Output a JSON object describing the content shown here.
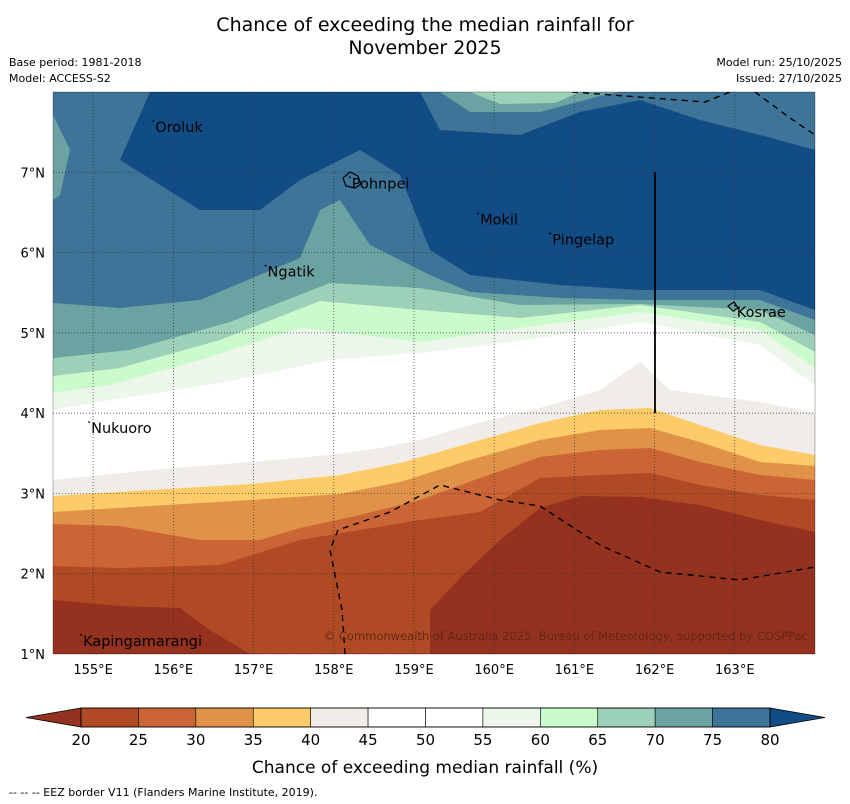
{
  "title": {
    "line1": "Chance of exceeding the median rainfall for",
    "line2": "November 2025"
  },
  "meta_left": {
    "base_period": "Base period: 1981-2018",
    "model": "Model: ACCESS-S2"
  },
  "meta_right": {
    "model_run": "Model run: 25/10/2025",
    "issued": "Issued: 27/10/2025"
  },
  "map": {
    "lon_range": [
      154.5,
      164.0
    ],
    "lat_range": [
      1.0,
      8.0
    ],
    "lon_ticks": [
      155,
      156,
      157,
      158,
      159,
      160,
      161,
      162,
      163
    ],
    "lon_tick_labels": [
      "155°E",
      "156°E",
      "157°E",
      "158°E",
      "159°E",
      "160°E",
      "161°E",
      "162°E",
      "163°E"
    ],
    "lat_ticks": [
      1,
      2,
      3,
      4,
      5,
      6,
      7
    ],
    "lat_tick_labels": [
      "1°N",
      "2°N",
      "3°N",
      "4°N",
      "5°N",
      "6°N",
      "7°N"
    ],
    "places": [
      {
        "name": "Oroluk",
        "lon": 155.75,
        "lat": 7.6
      },
      {
        "name": "Pohnpei",
        "lon": 158.2,
        "lat": 6.9
      },
      {
        "name": "Mokil",
        "lon": 159.8,
        "lat": 6.45
      },
      {
        "name": "Pingelap",
        "lon": 160.7,
        "lat": 6.2
      },
      {
        "name": "Ngatik",
        "lon": 157.15,
        "lat": 5.8
      },
      {
        "name": "Kosrae",
        "lon": 163.0,
        "lat": 5.3
      },
      {
        "name": "Nukuoro",
        "lon": 154.95,
        "lat": 3.85
      },
      {
        "name": "Kapingamarangi",
        "lon": 154.85,
        "lat": 1.2
      }
    ],
    "copyright": "© Commonwealth of Australia 2025, Bureau of Meteorology, supported by COSPPac"
  },
  "colorbar": {
    "levels": [
      20,
      25,
      30,
      35,
      40,
      45,
      50,
      55,
      60,
      65,
      70,
      75,
      80
    ],
    "colors": [
      "#b04a25",
      "#cc6535",
      "#e09348",
      "#fecb69",
      "#f0ede8",
      "#ffffff",
      "#ffffff",
      "#ecf6ea",
      "#cbfbcc",
      "#9dd0b8",
      "#6ba3a2",
      "#3e7497"
    ],
    "under_color": "#94321f",
    "over_color": "#124c85",
    "label": "Chance of exceeding median rainfall (%)"
  },
  "footnote": "-- -- -- EEZ border V11 (Flanders Marine Institute, 2019)."
}
